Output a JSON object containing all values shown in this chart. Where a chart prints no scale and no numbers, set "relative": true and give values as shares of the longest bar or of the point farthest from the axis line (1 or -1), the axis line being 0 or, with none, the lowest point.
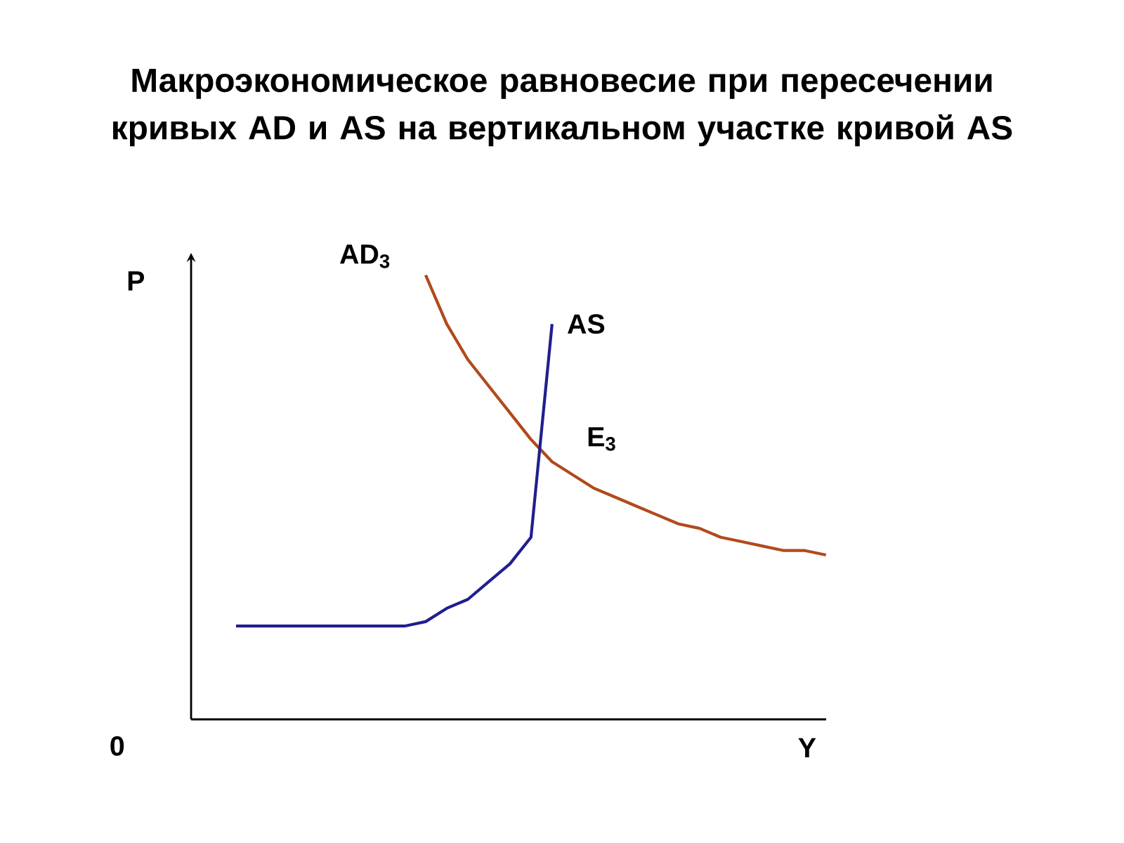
{
  "chart_data": {
    "type": "line",
    "relative": true,
    "title": "Макроэкономическое равновесие при пересечении кривых AD и AS на вертикальном участке кривой AS",
    "xlabel": "Y",
    "ylabel": "P",
    "annotations": [
      "0",
      "E$_{3}$"
    ],
    "categories": [
      null,
      null,
      null,
      null,
      null,
      null,
      null,
      null,
      null,
      null,
      null,
      null,
      null,
      null,
      null,
      null,
      null,
      null,
      null,
      null,
      null,
      null,
      null,
      null,
      null,
      null,
      null,
      null,
      null
    ],
    "series": [
      {
        "name": "AD$_{3}$",
        "color": "#b04a1c",
        "values": [
          null,
          null,
          null,
          null,
          null,
          null,
          null,
          null,
          null,
          1.0,
          0.89,
          0.81,
          0.75,
          0.69,
          0.63,
          0.58,
          0.55,
          0.52,
          0.5,
          0.48,
          0.46,
          0.44,
          0.43,
          0.41,
          0.4,
          0.39,
          0.38,
          0.38,
          0.37
        ]
      },
      {
        "name": "AS",
        "color": "#1f1f8f",
        "values": [
          0.21,
          0.21,
          0.21,
          0.21,
          0.21,
          0.21,
          0.21,
          0.21,
          0.21,
          0.22,
          0.25,
          0.27,
          0.31,
          0.35,
          0.41,
          0.89,
          null,
          null,
          null,
          null,
          null,
          null,
          null,
          null,
          null,
          null,
          null,
          null,
          null
        ]
      }
    ]
  }
}
